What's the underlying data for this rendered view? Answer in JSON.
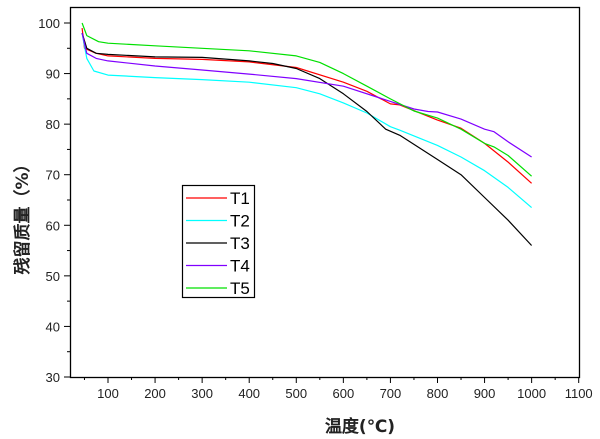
{
  "chart_data": {
    "type": "line",
    "title": "",
    "xlabel": "温度(℃)",
    "ylabel": "残留质量（%）",
    "xlim": [
      30,
      1100
    ],
    "ylim": [
      30,
      100
    ],
    "xticks": [
      "100",
      "200",
      "300",
      "400",
      "500",
      "600",
      "700",
      "800",
      "900",
      "1000",
      "1100"
    ],
    "yticks": [
      "30",
      "40",
      "50",
      "60",
      "70",
      "80",
      "90",
      "100"
    ],
    "grid": false,
    "legend": "center-left",
    "series": [
      {
        "name": "T1",
        "color": "#ff0000",
        "x": [
          45,
          50,
          75,
          100,
          200,
          300,
          400,
          500,
          600,
          650,
          700,
          720,
          800,
          850,
          900,
          950,
          1000
        ],
        "y": [
          99,
          95,
          94,
          93.5,
          93,
          92.8,
          92.3,
          91.2,
          88.3,
          86.5,
          84,
          83.8,
          80.8,
          79.2,
          76.2,
          72.5,
          68.3
        ]
      },
      {
        "name": "T2",
        "color": "#00ffff",
        "x": [
          45,
          55,
          70,
          100,
          200,
          300,
          400,
          500,
          550,
          600,
          650,
          700,
          720,
          800,
          850,
          900,
          950,
          1000
        ],
        "y": [
          98,
          93,
          90.5,
          89.7,
          89.2,
          88.8,
          88.3,
          87.2,
          86,
          84.2,
          82.2,
          79.5,
          78.8,
          75.8,
          73.5,
          70.8,
          67.5,
          63.5
        ]
      },
      {
        "name": "T3",
        "color": "#000000",
        "x": [
          45,
          55,
          75,
          100,
          200,
          300,
          400,
          450,
          500,
          550,
          600,
          650,
          690,
          720,
          800,
          850,
          900,
          950,
          1000
        ],
        "y": [
          98,
          95,
          94,
          93.8,
          93.3,
          93.2,
          92.5,
          92,
          91,
          89,
          86,
          82.5,
          79,
          77.8,
          73,
          70,
          65.5,
          61,
          56
        ]
      },
      {
        "name": "T4",
        "color": "#8000ff",
        "x": [
          45,
          55,
          75,
          100,
          200,
          300,
          400,
          500,
          600,
          700,
          750,
          780,
          800,
          850,
          900,
          920,
          950,
          1000
        ],
        "y": [
          98,
          94,
          93,
          92.5,
          91.5,
          90.7,
          89.9,
          89,
          87.5,
          84.5,
          83,
          82.5,
          82.4,
          81,
          79,
          78.5,
          76.5,
          73.5
        ]
      },
      {
        "name": "T5",
        "color": "#00e000",
        "x": [
          45,
          55,
          80,
          100,
          200,
          300,
          400,
          500,
          550,
          600,
          650,
          700,
          750,
          800,
          850,
          900,
          920,
          950,
          1000
        ],
        "y": [
          100,
          97.5,
          96.3,
          96,
          95.5,
          95,
          94.5,
          93.5,
          92.2,
          90,
          87.5,
          85,
          82.6,
          81.2,
          79,
          76.2,
          75.5,
          73.8,
          69.7
        ]
      }
    ]
  }
}
